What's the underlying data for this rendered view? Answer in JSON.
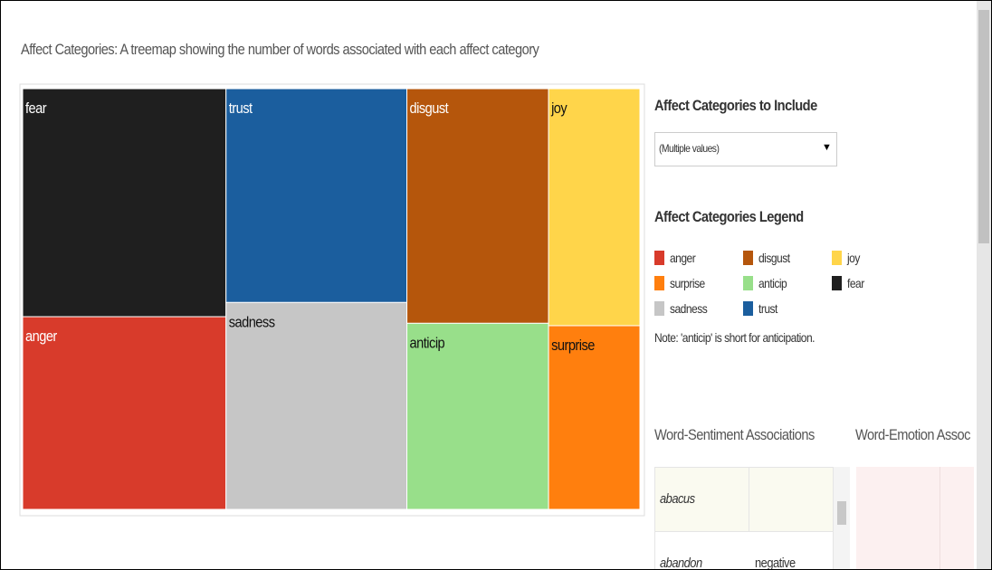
{
  "page_title": "Affect Categories: A treemap showing the number of words associated with each affect category",
  "chart_data": {
    "type": "treemap",
    "series": [
      {
        "name": "fear",
        "color": "#1f1f1f",
        "value": 1476
      },
      {
        "name": "anger",
        "color": "#d83b2b",
        "value": 1247
      },
      {
        "name": "trust",
        "color": "#1b5e9e",
        "value": 1231
      },
      {
        "name": "sadness",
        "color": "#c6c6c6",
        "value": 1191
      },
      {
        "name": "disgust",
        "color": "#b5560c",
        "value": 1058
      },
      {
        "name": "anticip",
        "color": "#98df8a",
        "value": 839
      },
      {
        "name": "joy",
        "color": "#ffd54a",
        "value": 689
      },
      {
        "name": "surprise",
        "color": "#ff7f0e",
        "value": 534
      }
    ]
  },
  "filter": {
    "title": "Affect Categories to Include",
    "value": "(Multiple values)"
  },
  "legend": {
    "title": "Affect Categories Legend",
    "note": "Note: 'anticip' is short for anticipation."
  },
  "tables": {
    "headers": [
      "Word-Sentiment Associations",
      "Word-Emotion Assoc"
    ],
    "rows": [
      [
        "abacus"
      ],
      [
        "abandon",
        "negative"
      ]
    ]
  }
}
